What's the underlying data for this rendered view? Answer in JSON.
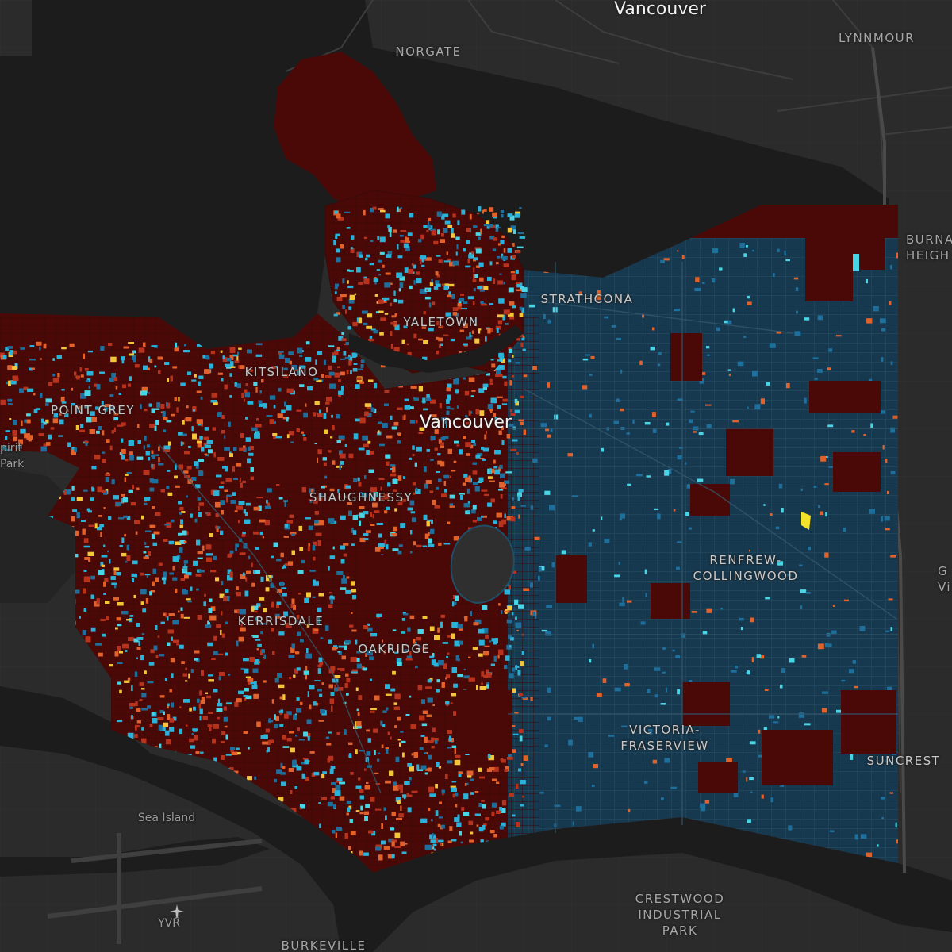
{
  "map": {
    "labels": {
      "city_north": "Vancouver",
      "city_main": "Vancouver",
      "norgate": "NORGATE",
      "lynnmour": "LYNNMOUR",
      "burnaby_heights": "BURNA\nHEIGH",
      "strathcona": "STRATHCONA",
      "yaletown": "YALETOWN",
      "kitsilano": "KITSILANO",
      "point_grey": "POINT GREY",
      "spirit_park": "pirit\nPark",
      "shaughnessy": "SHAUGHNESSY",
      "renfrew": "RENFREW-\nCOLLINGWOOD",
      "kerrisdale": "KERRISDALE",
      "oakridge": "OAKRIDGE",
      "victoria": "VICTORIA-\nFRASERVIEW",
      "suncrest": "SUNCREST",
      "sea_island": "Sea Island",
      "yvr": "YVR",
      "crestwood": "CRESTWOOD\nINDUSTRIAL\nPARK",
      "burkeville": "BURKEVILLE",
      "edge_right": "G\nVi"
    },
    "icons": {
      "airport": "airplane-icon"
    },
    "colors": {
      "land": "#2b2b2b",
      "water": "#1c1c1c",
      "roads": "#3e3e3e",
      "parcel_base": "#4a0806",
      "blue_dark": "#16394f",
      "blue_mid": "#1f6f9d",
      "blue_light": "#2ab2d8",
      "cyan": "#48d6e6",
      "orange": "#e2622c",
      "red_orange": "#b8331d",
      "yellow": "#f3c63a"
    }
  }
}
